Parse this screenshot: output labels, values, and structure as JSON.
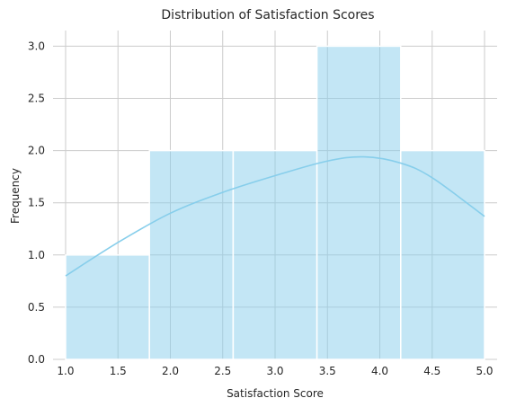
{
  "chart_data": {
    "type": "bar",
    "title": "Distribution of Satisfaction Scores",
    "xlabel": "Satisfaction Score",
    "ylabel": "Frequency",
    "bins": [
      {
        "start": 1.0,
        "end": 1.8,
        "count": 1
      },
      {
        "start": 1.8,
        "end": 2.6,
        "count": 2
      },
      {
        "start": 2.6,
        "end": 3.4,
        "count": 2
      },
      {
        "start": 3.4,
        "end": 4.2,
        "count": 3
      },
      {
        "start": 4.2,
        "end": 5.0,
        "count": 2
      }
    ],
    "kde": {
      "x": [
        1.0,
        1.5,
        2.0,
        2.5,
        3.0,
        3.5,
        3.85,
        4.2,
        4.5,
        5.0
      ],
      "y": [
        0.8,
        1.12,
        1.4,
        1.6,
        1.76,
        1.9,
        1.94,
        1.88,
        1.74,
        1.37
      ]
    },
    "xlim": [
      0.88,
      5.12
    ],
    "ylim": [
      0,
      3.15
    ],
    "xticks": [
      "1.0",
      "1.5",
      "2.0",
      "2.5",
      "3.0",
      "3.5",
      "4.0",
      "4.5",
      "5.0"
    ],
    "yticks": [
      "0.0",
      "0.5",
      "1.0",
      "1.5",
      "2.0",
      "2.5",
      "3.0"
    ],
    "grid": true,
    "bar_color": "#87ceeb",
    "kde_color": "#87ceeb"
  }
}
